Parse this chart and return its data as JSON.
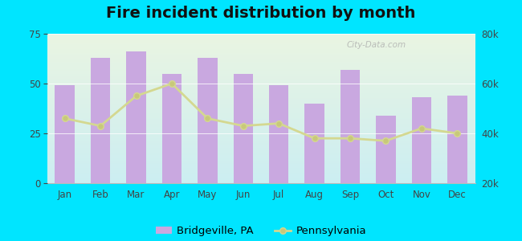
{
  "title": "Fire incident distribution by month",
  "months": [
    "Jan",
    "Feb",
    "Mar",
    "Apr",
    "May",
    "Jun",
    "Jul",
    "Aug",
    "Sep",
    "Oct",
    "Nov",
    "Dec"
  ],
  "bridgeville_values": [
    49,
    63,
    66,
    55,
    63,
    55,
    49,
    40,
    57,
    34,
    43,
    44
  ],
  "pennsylvania_values": [
    46000,
    43000,
    55000,
    60000,
    46000,
    43000,
    44000,
    38000,
    38000,
    37000,
    42000,
    40000
  ],
  "bar_color": "#c9a8e0",
  "line_color": "#d4d890",
  "line_marker_color": "#c8c87a",
  "background_color": "#00e5ff",
  "plot_bg_top": "#eaf5e2",
  "plot_bg_bottom": "#cceef2",
  "ylim_left": [
    0,
    75
  ],
  "ylim_right": [
    20000,
    80000
  ],
  "yticks_left": [
    0,
    25,
    50,
    75
  ],
  "yticks_right": [
    20000,
    40000,
    60000,
    80000
  ],
  "title_fontsize": 14,
  "tick_fontsize": 8.5,
  "legend_fontsize": 9.5,
  "watermark": "City-Data.com"
}
